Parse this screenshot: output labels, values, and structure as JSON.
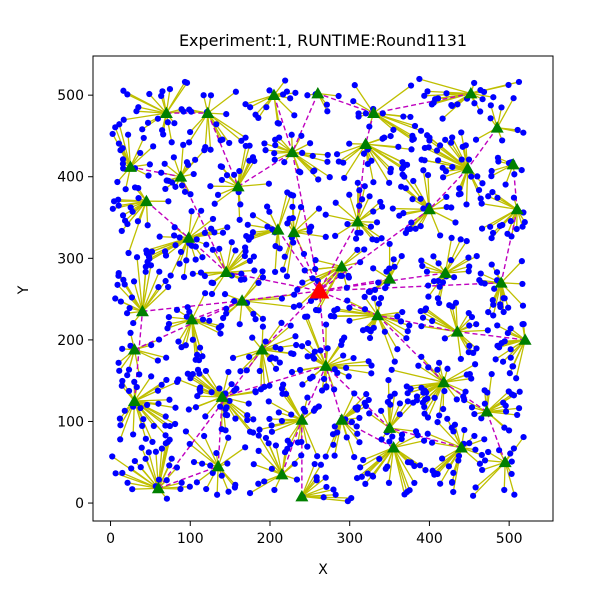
{
  "chart_data": {
    "type": "scatter",
    "title": "Experiment:1, RUNTIME:Round1131",
    "xlabel": "X",
    "ylabel": "Y",
    "xlim": [
      -22,
      555
    ],
    "ylim": [
      -22,
      548
    ],
    "xticks": [
      0,
      100,
      200,
      300,
      400,
      500
    ],
    "yticks": [
      0,
      100,
      200,
      300,
      400,
      500
    ],
    "grid": false,
    "legend": "none",
    "colors": {
      "nodes": "#0000ff",
      "cluster_heads": "#008000",
      "sink": "#ff0000",
      "member_links": "#bfbf00",
      "head_routes": "#bf00bf"
    },
    "sink": {
      "x": 262,
      "y": 260
    },
    "cluster_heads": [
      {
        "x": 70,
        "y": 478
      },
      {
        "x": 122,
        "y": 478
      },
      {
        "x": 205,
        "y": 500
      },
      {
        "x": 260,
        "y": 502
      },
      {
        "x": 330,
        "y": 478
      },
      {
        "x": 452,
        "y": 502
      },
      {
        "x": 485,
        "y": 460
      },
      {
        "x": 25,
        "y": 412
      },
      {
        "x": 88,
        "y": 400
      },
      {
        "x": 160,
        "y": 388
      },
      {
        "x": 228,
        "y": 430
      },
      {
        "x": 320,
        "y": 440
      },
      {
        "x": 448,
        "y": 410
      },
      {
        "x": 505,
        "y": 415
      },
      {
        "x": 45,
        "y": 370
      },
      {
        "x": 98,
        "y": 325
      },
      {
        "x": 210,
        "y": 335
      },
      {
        "x": 230,
        "y": 332
      },
      {
        "x": 310,
        "y": 345
      },
      {
        "x": 400,
        "y": 360
      },
      {
        "x": 510,
        "y": 360
      },
      {
        "x": 145,
        "y": 283
      },
      {
        "x": 290,
        "y": 290
      },
      {
        "x": 350,
        "y": 275
      },
      {
        "x": 420,
        "y": 282
      },
      {
        "x": 490,
        "y": 270
      },
      {
        "x": 40,
        "y": 235
      },
      {
        "x": 102,
        "y": 225
      },
      {
        "x": 165,
        "y": 248
      },
      {
        "x": 335,
        "y": 230
      },
      {
        "x": 435,
        "y": 210
      },
      {
        "x": 520,
        "y": 200
      },
      {
        "x": 30,
        "y": 188
      },
      {
        "x": 190,
        "y": 188
      },
      {
        "x": 270,
        "y": 168
      },
      {
        "x": 418,
        "y": 148
      },
      {
        "x": 30,
        "y": 125
      },
      {
        "x": 140,
        "y": 130
      },
      {
        "x": 240,
        "y": 102
      },
      {
        "x": 290,
        "y": 102
      },
      {
        "x": 350,
        "y": 92
      },
      {
        "x": 472,
        "y": 112
      },
      {
        "x": 355,
        "y": 68
      },
      {
        "x": 440,
        "y": 68
      },
      {
        "x": 135,
        "y": 45
      },
      {
        "x": 215,
        "y": 35
      },
      {
        "x": 495,
        "y": 50
      },
      {
        "x": 60,
        "y": 18
      },
      {
        "x": 240,
        "y": 8
      }
    ],
    "routes": [
      [
        70,
        478,
        122,
        478
      ],
      [
        122,
        478,
        160,
        388
      ],
      [
        205,
        500,
        228,
        430
      ],
      [
        260,
        502,
        228,
        430
      ],
      [
        330,
        478,
        260,
        502
      ],
      [
        330,
        478,
        320,
        440
      ],
      [
        452,
        502,
        330,
        478
      ],
      [
        485,
        460,
        448,
        410
      ],
      [
        25,
        412,
        88,
        400
      ],
      [
        88,
        400,
        145,
        283
      ],
      [
        160,
        388,
        228,
        430
      ],
      [
        228,
        430,
        262,
        260
      ],
      [
        320,
        440,
        310,
        345
      ],
      [
        448,
        410,
        400,
        360
      ],
      [
        505,
        415,
        510,
        360
      ],
      [
        45,
        370,
        98,
        325
      ],
      [
        98,
        325,
        145,
        283
      ],
      [
        210,
        335,
        262,
        260
      ],
      [
        230,
        332,
        262,
        260
      ],
      [
        310,
        345,
        262,
        260
      ],
      [
        400,
        360,
        262,
        260
      ],
      [
        510,
        360,
        490,
        270
      ],
      [
        145,
        283,
        262,
        260
      ],
      [
        290,
        290,
        262,
        260
      ],
      [
        350,
        275,
        262,
        260
      ],
      [
        420,
        282,
        262,
        260
      ],
      [
        490,
        270,
        262,
        260
      ],
      [
        40,
        235,
        165,
        248
      ],
      [
        102,
        225,
        165,
        248
      ],
      [
        165,
        248,
        262,
        260
      ],
      [
        335,
        230,
        262,
        260
      ],
      [
        435,
        210,
        335,
        230
      ],
      [
        520,
        200,
        435,
        210
      ],
      [
        30,
        188,
        165,
        248
      ],
      [
        190,
        188,
        262,
        260
      ],
      [
        270,
        168,
        262,
        260
      ],
      [
        418,
        148,
        335,
        230
      ],
      [
        30,
        125,
        40,
        235
      ],
      [
        140,
        130,
        270,
        168
      ],
      [
        240,
        102,
        270,
        168
      ],
      [
        290,
        102,
        270,
        168
      ],
      [
        350,
        92,
        270,
        168
      ],
      [
        472,
        112,
        418,
        148
      ],
      [
        355,
        68,
        290,
        102
      ],
      [
        440,
        68,
        350,
        92
      ],
      [
        135,
        45,
        140,
        130
      ],
      [
        215,
        35,
        240,
        102
      ],
      [
        495,
        50,
        472,
        112
      ],
      [
        60,
        18,
        135,
        45
      ],
      [
        240,
        8,
        240,
        102
      ],
      [
        60,
        18,
        190,
        188
      ]
    ],
    "node_count": 1000,
    "seed": 1131
  }
}
